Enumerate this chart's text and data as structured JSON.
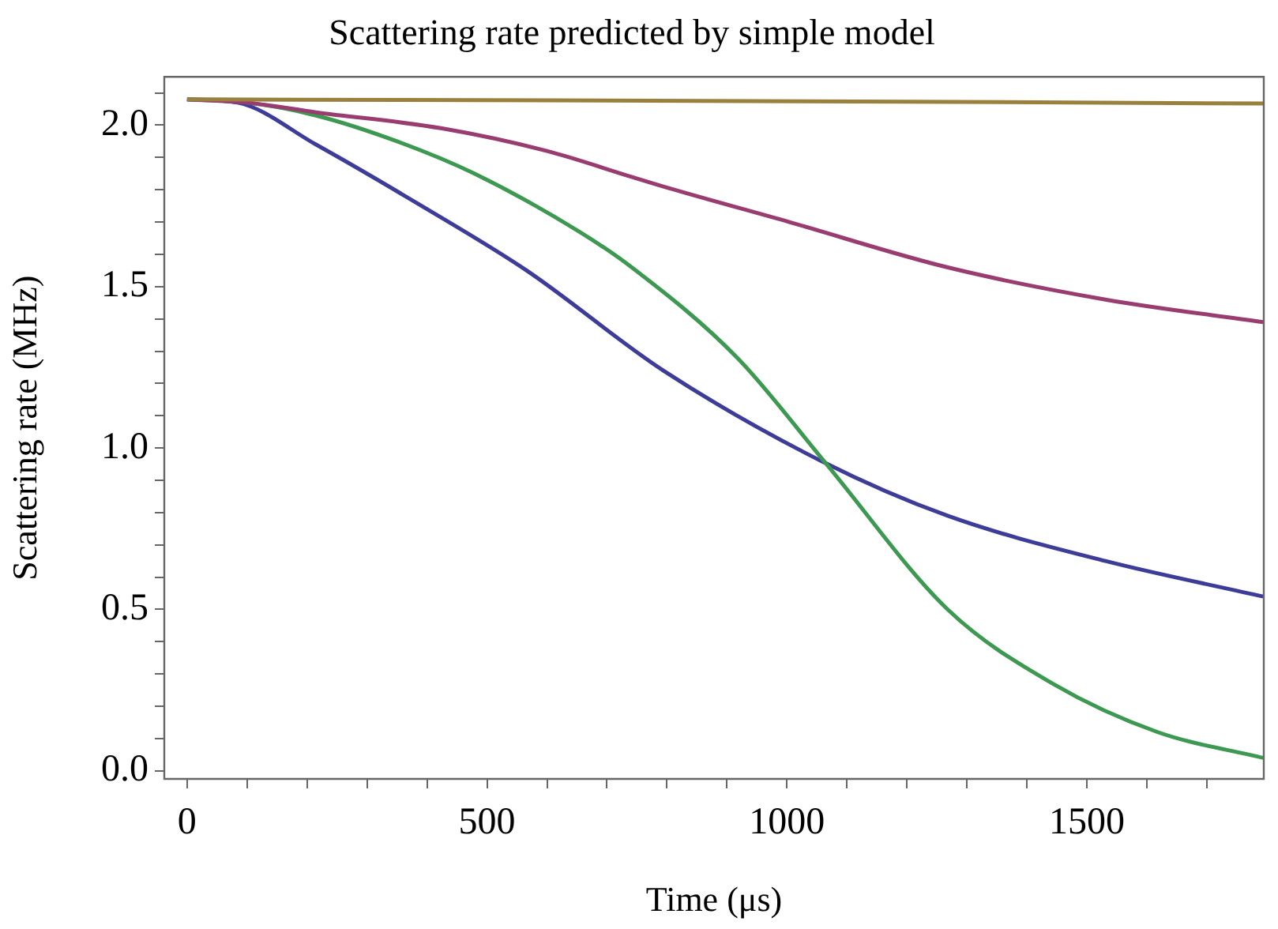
{
  "chart_data": {
    "type": "line",
    "title": "Scattering rate predicted by simple model",
    "xlabel": "Time (μs)",
    "ylabel": "Scattering rate (MHz)",
    "xlim": [
      -38,
      1795
    ],
    "ylim": [
      -0.025,
      2.15
    ],
    "xticks": [
      0,
      {
        "value": 100,
        "label": null
      },
      {
        "value": 200,
        "label": null
      },
      {
        "value": 300,
        "label": null
      },
      {
        "value": 400,
        "label": null
      },
      500,
      {
        "value": 600,
        "label": null
      },
      {
        "value": 700,
        "label": null
      },
      {
        "value": 800,
        "label": null
      },
      {
        "value": 900,
        "label": null
      },
      1000,
      {
        "value": 1100,
        "label": null
      },
      {
        "value": 1200,
        "label": null
      },
      {
        "value": 1300,
        "label": null
      },
      {
        "value": 1400,
        "label": null
      },
      1500,
      {
        "value": 1600,
        "label": null
      },
      {
        "value": 1700,
        "label": null
      }
    ],
    "yticks": [
      {
        "value": 0,
        "label": "0.0"
      },
      {
        "value": 0.1,
        "label": null
      },
      {
        "value": 0.2,
        "label": null
      },
      {
        "value": 0.3,
        "label": null
      },
      {
        "value": 0.4,
        "label": null
      },
      0.5,
      {
        "value": 0.6,
        "label": null
      },
      {
        "value": 0.7,
        "label": null
      },
      {
        "value": 0.8,
        "label": null
      },
      {
        "value": 0.9,
        "label": null
      },
      {
        "value": 1,
        "label": "1.0"
      },
      {
        "value": 1.1,
        "label": null
      },
      {
        "value": 1.2,
        "label": null
      },
      {
        "value": 1.3,
        "label": null
      },
      {
        "value": 1.4,
        "label": null
      },
      1.5,
      {
        "value": 1.6,
        "label": null
      },
      {
        "value": 1.7,
        "label": null
      },
      {
        "value": 1.8,
        "label": null
      },
      {
        "value": 1.9,
        "label": null
      },
      {
        "value": 2,
        "label": "2.0"
      },
      {
        "value": 2.1,
        "label": null
      }
    ],
    "grid": false,
    "legend": false,
    "marker": "none",
    "line_style": "solid",
    "series": [
      {
        "color": "#99803d",
        "x": [
          0,
          600,
          1200,
          1794
        ],
        "values": [
          2.08,
          2.077,
          2.073,
          2.067
        ]
      },
      {
        "color": "#993d71",
        "x": [
          0,
          100,
          215,
          425,
          600,
          741,
          794,
          1004,
          1267,
          1531,
          1794
        ],
        "values": [
          2.08,
          2.07,
          2.04,
          1.99,
          1.92,
          1.84,
          1.81,
          1.7,
          1.56,
          1.46,
          1.39
        ]
      },
      {
        "color": "#3d9951",
        "x": [
          0,
          100,
          215,
          350,
          479,
          654,
          741,
          917,
          1066,
          1268,
          1443,
          1618,
          1794
        ],
        "values": [
          2.08,
          2.07,
          2.03,
          1.95,
          1.85,
          1.67,
          1.56,
          1.28,
          0.95,
          0.5,
          0.27,
          0.12,
          0.04
        ]
      },
      {
        "color": "#3d3d99",
        "x": [
          0,
          84,
          215,
          391,
          566,
          794,
          1057,
          1268,
          1531,
          1794
        ],
        "values": [
          2.08,
          2.07,
          1.94,
          1.75,
          1.55,
          1.24,
          0.96,
          0.79,
          0.65,
          0.54
        ]
      }
    ]
  }
}
